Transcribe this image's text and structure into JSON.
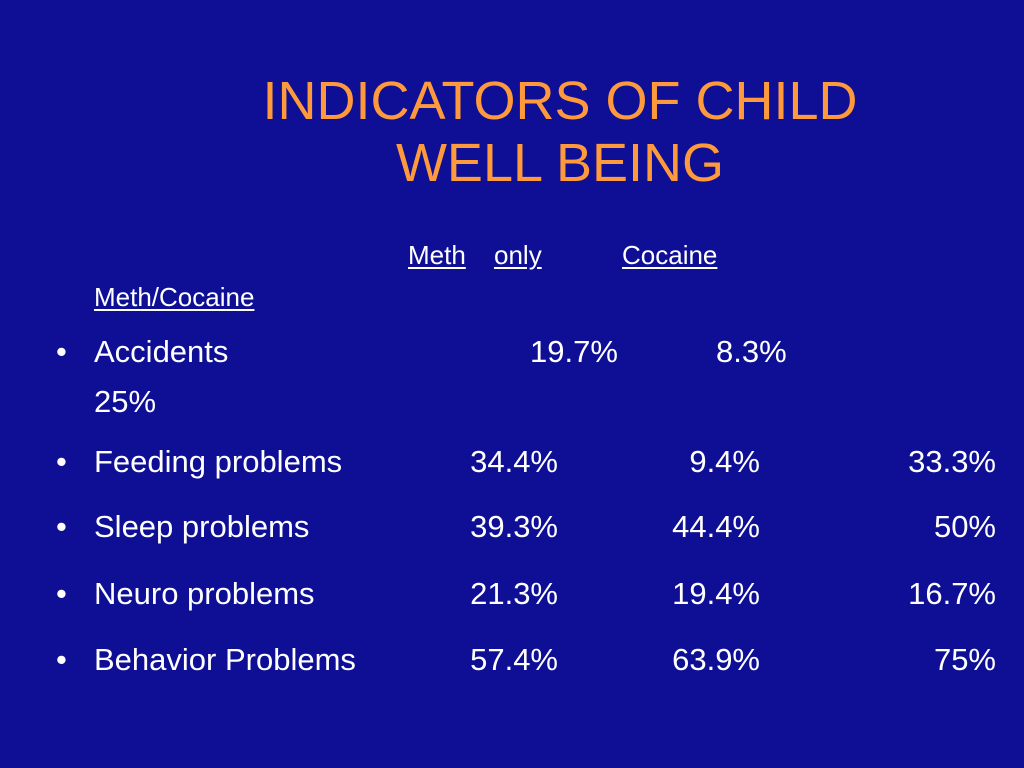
{
  "slide": {
    "title_line1": "INDICATORS OF CHILD",
    "title_line2": "WELL BEING",
    "headers": {
      "meth": "Meth",
      "only": "only",
      "cocaine": "Cocaine",
      "meth_cocaine": "Meth/Cocaine"
    },
    "bullet": "•",
    "rows": [
      {
        "label": "Accidents",
        "meth_only": "19.7%",
        "cocaine": "8.3%",
        "meth_cocaine": "25%"
      },
      {
        "label": "Feeding problems",
        "meth_only": "34.4%",
        "cocaine": "9.4%",
        "meth_cocaine": "33.3%"
      },
      {
        "label": "Sleep problems",
        "meth_only": "39.3%",
        "cocaine": "44.4%",
        "meth_cocaine": "50%"
      },
      {
        "label": "Neuro problems",
        "meth_only": "21.3%",
        "cocaine": "19.4%",
        "meth_cocaine": "16.7%"
      },
      {
        "label": "Behavior Problems",
        "meth_only": "57.4%",
        "cocaine": "63.9%",
        "meth_cocaine": "75%"
      }
    ]
  },
  "colors": {
    "background": "#0f0f96",
    "title": "#ff9a3c",
    "text": "#ffffff"
  }
}
